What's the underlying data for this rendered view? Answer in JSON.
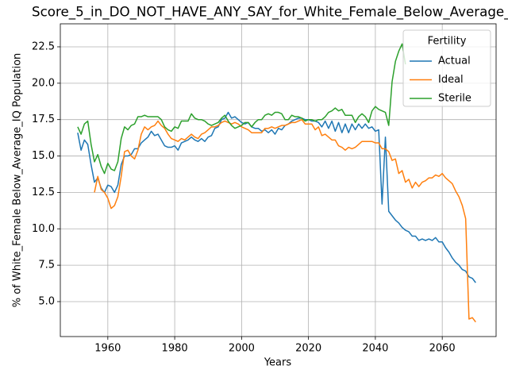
{
  "chart_data": {
    "type": "line",
    "title": "Score_5_in_DO_NOT_HAVE_ANY_SAY_for_White_Female_Below_Average_",
    "xlabel": "Years",
    "ylabel": "% of White_Female Below_Average_IQ Population",
    "legend_title": "Fertility",
    "legend_position": "upper right",
    "grid": true,
    "xlim": [
      1945.8,
      2076.1
    ],
    "ylim": [
      2.6,
      24.08
    ],
    "xticks": [
      1960,
      1980,
      2000,
      2020,
      2040,
      2060
    ],
    "yticks": [
      {
        "value": 5,
        "label": "5.0"
      },
      {
        "value": 7.5,
        "label": "7.5"
      },
      {
        "value": 10,
        "label": "10.0"
      },
      {
        "value": 12.5,
        "label": "12.5"
      },
      {
        "value": 15,
        "label": "15.0"
      },
      {
        "value": 17.5,
        "label": "17.5"
      },
      {
        "value": 20,
        "label": "20.0"
      },
      {
        "value": 22.5,
        "label": "22.5"
      }
    ],
    "x": [
      1951,
      1952,
      1953,
      1954,
      1955,
      1956,
      1957,
      1958,
      1959,
      1960,
      1961,
      1962,
      1963,
      1964,
      1965,
      1966,
      1967,
      1968,
      1969,
      1970,
      1971,
      1972,
      1973,
      1974,
      1975,
      1976,
      1977,
      1978,
      1979,
      1980,
      1981,
      1982,
      1983,
      1984,
      1985,
      1986,
      1987,
      1988,
      1989,
      1990,
      1991,
      1992,
      1993,
      1994,
      1995,
      1996,
      1997,
      1998,
      1999,
      2000,
      2001,
      2002,
      2003,
      2004,
      2005,
      2006,
      2007,
      2008,
      2009,
      2010,
      2011,
      2012,
      2013,
      2014,
      2015,
      2016,
      2017,
      2018,
      2019,
      2020,
      2021,
      2022,
      2023,
      2024,
      2025,
      2026,
      2027,
      2028,
      2029,
      2030,
      2031,
      2032,
      2033,
      2034,
      2035,
      2036,
      2037,
      2038,
      2039,
      2040,
      2041,
      2042,
      2043,
      2044,
      2045,
      2046,
      2047,
      2048,
      2049,
      2050,
      2051,
      2052,
      2053,
      2054,
      2055,
      2056,
      2057,
      2058,
      2059,
      2060,
      2061,
      2062,
      2063,
      2064,
      2065,
      2066,
      2067,
      2068,
      2069,
      2070
    ],
    "series": [
      {
        "name": "Actual",
        "color": "#1f77b4",
        "values": [
          16.6,
          15.4,
          16.1,
          15.8,
          14.4,
          13.2,
          13.5,
          12.8,
          12.5,
          13.0,
          12.9,
          12.5,
          13.0,
          14.4,
          15.0,
          15.0,
          15.1,
          15.5,
          15.5,
          15.9,
          16.1,
          16.3,
          16.7,
          16.4,
          16.5,
          16.1,
          15.7,
          15.6,
          15.6,
          15.7,
          15.4,
          15.9,
          16.0,
          16.1,
          16.3,
          16.1,
          16.0,
          16.2,
          16.0,
          16.3,
          16.4,
          16.9,
          17.0,
          17.5,
          17.6,
          18.0,
          17.6,
          17.7,
          17.5,
          17.3,
          17.2,
          17.3,
          17.0,
          16.9,
          16.9,
          16.7,
          16.8,
          16.6,
          16.8,
          16.5,
          16.9,
          16.8,
          17.1,
          17.2,
          17.4,
          17.5,
          17.6,
          17.6,
          17.5,
          17.5,
          17.4,
          17.4,
          17.3,
          17.0,
          17.4,
          16.9,
          17.4,
          16.7,
          17.3,
          16.6,
          17.2,
          16.6,
          17.2,
          16.8,
          17.2,
          16.9,
          17.2,
          16.9,
          17.0,
          16.7,
          16.8,
          11.7,
          16.3,
          11.2,
          10.9,
          10.6,
          10.4,
          10.1,
          9.9,
          9.8,
          9.5,
          9.5,
          9.2,
          9.3,
          9.2,
          9.3,
          9.2,
          9.4,
          9.1,
          9.1,
          8.7,
          8.4,
          8.0,
          7.7,
          7.5,
          7.2,
          7.1,
          6.7,
          6.6,
          6.3
        ]
      },
      {
        "name": "Ideal",
        "color": "#ff7f0e",
        "values": [
          null,
          null,
          null,
          null,
          null,
          12.5,
          13.6,
          12.7,
          12.5,
          12.1,
          11.4,
          11.6,
          12.2,
          13.6,
          15.3,
          15.4,
          15.0,
          14.8,
          15.4,
          16.5,
          17.0,
          16.8,
          17.0,
          17.1,
          17.4,
          17.1,
          16.9,
          16.5,
          16.2,
          16.1,
          16.0,
          16.2,
          16.1,
          16.3,
          16.5,
          16.3,
          16.2,
          16.5,
          16.6,
          16.8,
          17.0,
          17.0,
          17.1,
          17.3,
          17.4,
          17.3,
          17.2,
          17.3,
          17.2,
          17.0,
          16.9,
          16.8,
          16.6,
          16.6,
          16.6,
          16.6,
          16.9,
          16.9,
          17.0,
          16.9,
          17.0,
          17.1,
          17.1,
          17.2,
          17.3,
          17.3,
          17.4,
          17.5,
          17.2,
          17.2,
          17.2,
          16.8,
          17.0,
          16.4,
          16.5,
          16.3,
          16.1,
          16.1,
          15.7,
          15.6,
          15.4,
          15.6,
          15.5,
          15.6,
          15.8,
          16.0,
          16.0,
          16.0,
          16.0,
          15.9,
          15.9,
          15.5,
          15.5,
          15.3,
          14.7,
          14.8,
          13.8,
          14.0,
          13.2,
          13.4,
          12.8,
          13.2,
          12.9,
          13.2,
          13.3,
          13.5,
          13.5,
          13.7,
          13.6,
          13.8,
          13.5,
          13.3,
          13.1,
          12.6,
          12.2,
          11.6,
          10.7,
          3.8,
          3.9,
          3.6
        ]
      },
      {
        "name": "Sterile",
        "color": "#2ca02c",
        "values": [
          17.0,
          16.5,
          17.2,
          17.4,
          15.8,
          14.6,
          15.1,
          14.3,
          13.8,
          14.5,
          14.1,
          14.0,
          14.6,
          16.2,
          17.0,
          16.8,
          17.1,
          17.2,
          17.7,
          17.7,
          17.8,
          17.7,
          17.7,
          17.7,
          17.7,
          17.5,
          17.0,
          16.8,
          16.7,
          17.0,
          16.9,
          17.4,
          17.4,
          17.4,
          17.9,
          17.6,
          17.5,
          17.5,
          17.4,
          17.2,
          17.1,
          17.2,
          17.3,
          17.6,
          17.8,
          17.4,
          17.1,
          16.9,
          17.0,
          17.1,
          17.3,
          17.3,
          17.0,
          17.3,
          17.5,
          17.5,
          17.8,
          17.9,
          17.8,
          18.0,
          18.0,
          17.9,
          17.5,
          17.5,
          17.8,
          17.7,
          17.7,
          17.6,
          17.4,
          17.5,
          17.5,
          17.4,
          17.5,
          17.5,
          17.7,
          18.0,
          18.1,
          18.3,
          18.1,
          18.2,
          17.8,
          17.8,
          17.8,
          17.3,
          17.7,
          17.9,
          17.7,
          17.3,
          18.1,
          18.4,
          18.2,
          18.1,
          18.0,
          17.1,
          20.1,
          21.5,
          22.2,
          22.7,
          21.3,
          null,
          null,
          null,
          null,
          null,
          null,
          null,
          null,
          null,
          null,
          null,
          null,
          null,
          null,
          null,
          null,
          null,
          null,
          null,
          null,
          null
        ]
      }
    ]
  }
}
